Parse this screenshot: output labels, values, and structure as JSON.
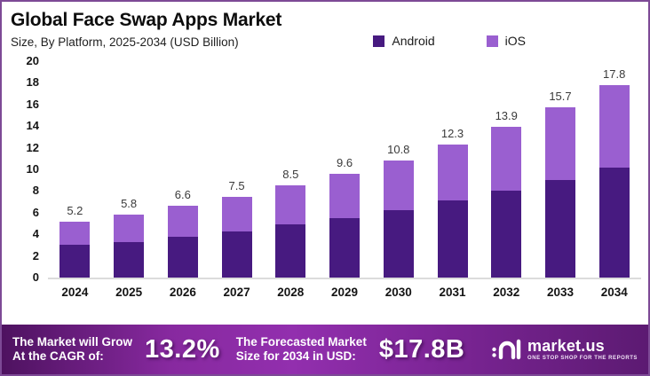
{
  "header": {
    "title": "Global Face Swap Apps Market",
    "subtitle": "Size, By Platform, 2025-2034 (USD Billion)"
  },
  "legend": [
    {
      "label": "Android",
      "color": "#471a80"
    },
    {
      "label": "iOS",
      "color": "#9a5fd0"
    }
  ],
  "chart_data": {
    "type": "bar",
    "stacked": true,
    "title": "Global Face Swap Apps Market",
    "subtitle": "Size, By Platform, 2025-2034 (USD Billion)",
    "categories": [
      "2024",
      "2025",
      "2026",
      "2027",
      "2028",
      "2029",
      "2030",
      "2031",
      "2032",
      "2033",
      "2034"
    ],
    "series": [
      {
        "name": "Android",
        "color": "#471a80",
        "values": [
          3.0,
          3.3,
          3.8,
          4.3,
          4.9,
          5.5,
          6.2,
          7.1,
          8.0,
          9.0,
          10.2
        ]
      },
      {
        "name": "iOS",
        "color": "#9a5fd0",
        "values": [
          2.2,
          2.5,
          2.8,
          3.2,
          3.6,
          4.1,
          4.6,
          5.2,
          5.9,
          6.7,
          7.6
        ]
      }
    ],
    "totals": [
      5.2,
      5.8,
      6.6,
      7.5,
      8.5,
      9.6,
      10.8,
      12.3,
      13.9,
      15.7,
      17.8
    ],
    "xlabel": "",
    "ylabel": "",
    "ylim": [
      0,
      20
    ],
    "ytick_step": 2,
    "grid": false,
    "legend_position": "top-right",
    "value_labels": "total above each bar"
  },
  "banner": {
    "cagr_label_line1": "The Market will Grow",
    "cagr_label_line2": "At the CAGR of:",
    "cagr_value": "13.2%",
    "forecast_label_line1": "The Forecasted Market",
    "forecast_label_line2": "Size for 2034 in USD:",
    "forecast_value": "$17.8B",
    "brand_name": "market.us",
    "brand_tagline": "ONE STOP SHOP FOR THE REPORTS"
  },
  "colors": {
    "android_bar": "#471a80",
    "ios_bar": "#9a5fd0",
    "frame_border": "#7d4a96",
    "axis_line": "#dcdcdc",
    "banner_gradient_mid": "#922fae",
    "banner_gradient_edge": "#4e1260",
    "text": "#141414"
  }
}
